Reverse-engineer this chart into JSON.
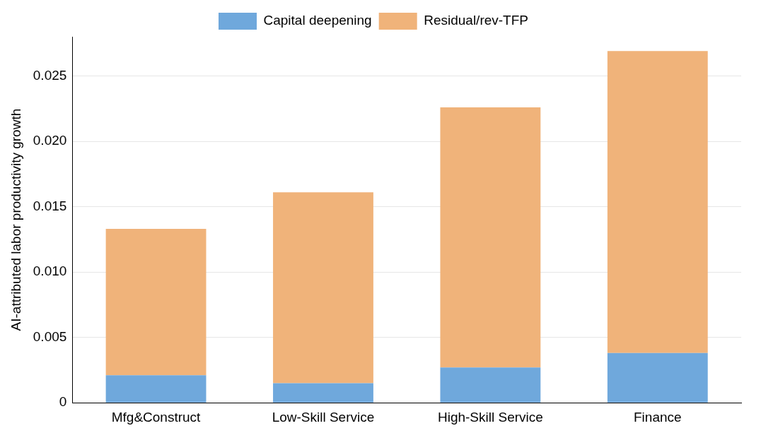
{
  "chart_data": {
    "type": "bar",
    "stacked": true,
    "ylabel": "AI-attributed labor productivity growth",
    "categories": [
      "Mfg&Construct",
      "Low-Skill Service",
      "High-Skill Service",
      "Finance"
    ],
    "series": [
      {
        "name": "Capital deepening",
        "color": "#6fa8dc",
        "values": [
          0.0021,
          0.0015,
          0.0027,
          0.0038
        ]
      },
      {
        "name": "Residual/rev-TFP",
        "color": "#f0b37a",
        "values": [
          0.0112,
          0.0146,
          0.0199,
          0.0231
        ]
      }
    ],
    "ylim": [
      0,
      0.028
    ],
    "yticks": [
      {
        "value": 0,
        "label": "0"
      },
      {
        "value": 0.005,
        "label": "0.005"
      },
      {
        "value": 0.01,
        "label": "0.010"
      },
      {
        "value": 0.015,
        "label": "0.015"
      },
      {
        "value": 0.02,
        "label": "0.020"
      },
      {
        "value": 0.025,
        "label": "0.025"
      }
    ],
    "grid": "y",
    "legend": "top"
  }
}
